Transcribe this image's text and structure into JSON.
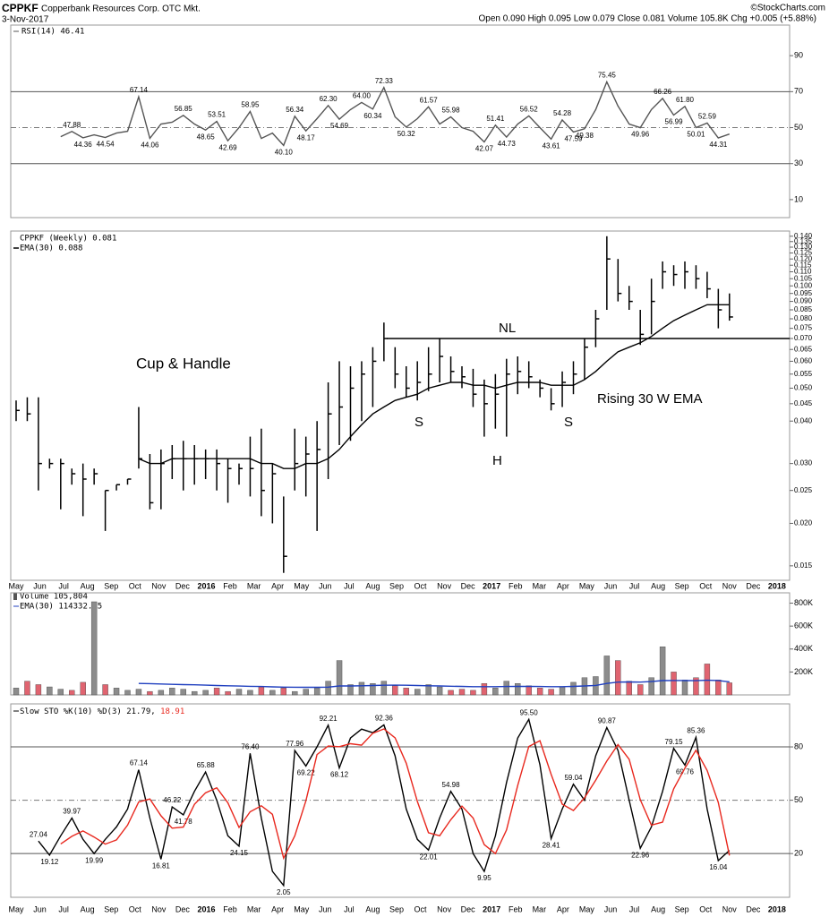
{
  "header": {
    "symbol": "CPPKF",
    "company": "Copperbank Resources Corp. OTC Mkt.",
    "date": "3-Nov-2017",
    "quote": "Open 0.090 High 0.095 Low 0.079 Close 0.081 Volume 105.8K Chg +0.005 (+5.88%)",
    "source": "©StockCharts.com"
  },
  "time_axis": [
    "May",
    "Jun",
    "Jul",
    "Aug",
    "Sep",
    "Oct",
    "Nov",
    "Dec",
    "2016",
    "Feb",
    "Mar",
    "Apr",
    "May",
    "Jun",
    "Jul",
    "Aug",
    "Sep",
    "Oct",
    "Nov",
    "Dec",
    "2017",
    "Feb",
    "Mar",
    "Apr",
    "May",
    "Jun",
    "Jul",
    "Aug",
    "Sep",
    "Oct",
    "Nov",
    "Dec",
    "2018"
  ],
  "chart_data": [
    {
      "type": "line",
      "title": "RSI(14) 46.41",
      "ylim": [
        0,
        107
      ],
      "yticks": [
        10,
        30,
        50,
        70,
        90
      ],
      "hlines": [
        {
          "value": 70,
          "style": "solid"
        },
        {
          "value": 50,
          "style": "dashed"
        },
        {
          "value": 30,
          "style": "solid"
        }
      ],
      "series": [
        {
          "name": "RSI(14)",
          "color": "#555555",
          "values": [
            null,
            null,
            null,
            null,
            45,
            47.88,
            44.36,
            46,
            44.54,
            47,
            48,
            67.14,
            44.06,
            52,
            53,
            56.85,
            52,
            48.65,
            53.51,
            42.69,
            50,
            58.95,
            44,
            47,
            40.1,
            56.34,
            48.17,
            55,
            62.3,
            54.69,
            60,
            64,
            60.34,
            72.33,
            56,
            50.32,
            55,
            61.57,
            52,
            55.98,
            50,
            48,
            42.07,
            51.41,
            44.73,
            52,
            56.52,
            50,
            43.61,
            54.28,
            47.59,
            49.38,
            60,
            75.45,
            62,
            52,
            49.96,
            60,
            66.26,
            56.99,
            61.8,
            50.01,
            52.59,
            44.31,
            46.41
          ],
          "value_labels": [
            null,
            null,
            null,
            null,
            null,
            "47.88",
            "44.36",
            null,
            "44.54",
            null,
            null,
            "67.14",
            "44.06",
            null,
            null,
            "56.85",
            null,
            "48.65",
            "53.51",
            "42.69",
            null,
            "58.95",
            null,
            null,
            "40.10",
            "56.34",
            "48.17",
            null,
            "62.30",
            "54.69",
            null,
            "64.00",
            "60.34",
            "72.33",
            null,
            "50.32",
            null,
            "61.57",
            null,
            "55.98",
            null,
            null,
            "42.07",
            "51.41",
            "44.73",
            null,
            "56.52",
            null,
            "43.61",
            "54.28",
            "47.59",
            "49.38",
            null,
            "75.45",
            null,
            null,
            "49.96",
            null,
            "66.26",
            "56.99",
            "61.80",
            "50.01",
            "52.59",
            "44.31",
            null
          ]
        }
      ]
    },
    {
      "type": "hlc",
      "log": true,
      "ylim": [
        0.0136,
        0.145
      ],
      "yticks": [
        {
          "value": 0.14,
          "label": "0.140"
        },
        0.135,
        {
          "value": 0.13,
          "label": "0.130"
        },
        0.125,
        {
          "value": 0.12,
          "label": "0.120"
        },
        0.115,
        {
          "value": 0.11,
          "label": "0.110"
        },
        0.105,
        {
          "value": 0.1,
          "label": "0.100"
        },
        0.095,
        {
          "value": 0.09,
          "label": "0.090"
        },
        0.085,
        {
          "value": 0.08,
          "label": "0.080"
        },
        0.075,
        {
          "value": 0.07,
          "label": "0.070"
        },
        0.065,
        {
          "value": 0.06,
          "label": "0.060"
        },
        0.055,
        {
          "value": 0.05,
          "label": "0.050"
        },
        0.045,
        {
          "value": 0.04,
          "label": "0.040"
        },
        {
          "value": 0.03,
          "label": "0.030"
        },
        0.025,
        {
          "value": 0.02,
          "label": "0.020"
        },
        0.015
      ],
      "neckline": {
        "label": "NL",
        "value": 0.07
      },
      "annotations": [
        "Cup & Handle",
        "S",
        "H",
        "S",
        "Rising 30 W EMA"
      ],
      "series": [
        {
          "name": "CPPKF (Weekly) 0.081",
          "color": "#000000",
          "high": [
            0.046,
            0.047,
            0.047,
            0.031,
            0.031,
            0.029,
            0.03,
            0.029,
            0.025,
            0.026,
            0.027,
            0.044,
            0.032,
            0.033,
            0.034,
            0.035,
            0.034,
            0.033,
            0.033,
            0.031,
            0.03,
            0.036,
            0.038,
            0.03,
            0.024,
            0.038,
            0.036,
            0.04,
            0.052,
            0.06,
            0.058,
            0.06,
            0.066,
            0.078,
            0.066,
            0.058,
            0.06,
            0.066,
            0.07,
            0.062,
            0.058,
            0.057,
            0.053,
            0.055,
            0.061,
            0.062,
            0.06,
            0.053,
            0.05,
            0.056,
            0.06,
            0.07,
            0.085,
            0.14,
            0.12,
            0.1,
            0.085,
            0.105,
            0.118,
            0.115,
            0.118,
            0.115,
            0.11,
            0.098,
            0.095
          ],
          "low": [
            0.04,
            0.04,
            0.025,
            0.029,
            0.022,
            0.026,
            0.021,
            0.026,
            0.019,
            0.025,
            0.026,
            0.029,
            0.022,
            0.022,
            0.027,
            0.025,
            0.026,
            0.027,
            0.025,
            0.023,
            0.026,
            0.024,
            0.021,
            0.02,
            0.0143,
            0.025,
            0.024,
            0.019,
            0.027,
            0.034,
            0.035,
            0.04,
            0.044,
            0.06,
            0.05,
            0.047,
            0.046,
            0.049,
            0.052,
            0.052,
            0.05,
            0.044,
            0.036,
            0.038,
            0.036,
            0.048,
            0.05,
            0.047,
            0.043,
            0.044,
            0.048,
            0.053,
            0.066,
            0.085,
            0.09,
            0.085,
            0.067,
            0.072,
            0.098,
            0.1,
            0.098,
            0.098,
            0.092,
            0.075,
            0.079
          ],
          "close": [
            0.043,
            0.042,
            0.03,
            0.03,
            0.03,
            0.028,
            0.027,
            0.028,
            0.025,
            0.026,
            0.027,
            0.031,
            0.023,
            0.03,
            0.031,
            0.031,
            0.031,
            0.031,
            0.03,
            0.029,
            0.029,
            0.029,
            0.025,
            0.028,
            0.016,
            0.03,
            0.032,
            0.033,
            0.042,
            0.044,
            0.05,
            0.055,
            0.06,
            0.07,
            0.055,
            0.05,
            0.052,
            0.055,
            0.062,
            0.056,
            0.054,
            0.048,
            0.045,
            0.048,
            0.055,
            0.056,
            0.054,
            0.05,
            0.045,
            0.052,
            0.055,
            0.066,
            0.08,
            0.12,
            0.095,
            0.09,
            0.072,
            0.09,
            0.11,
            0.108,
            0.11,
            0.105,
            0.098,
            0.085,
            0.081
          ]
        },
        {
          "name": "EMA(30) 0.088",
          "type": "line",
          "color": "#000000",
          "values": [
            null,
            null,
            null,
            null,
            null,
            null,
            null,
            null,
            null,
            null,
            null,
            0.031,
            0.03,
            0.03,
            0.031,
            0.031,
            0.031,
            0.031,
            0.031,
            0.031,
            0.031,
            0.031,
            0.03,
            0.03,
            0.029,
            0.029,
            0.03,
            0.03,
            0.031,
            0.033,
            0.036,
            0.039,
            0.042,
            0.044,
            0.046,
            0.047,
            0.048,
            0.05,
            0.051,
            0.052,
            0.052,
            0.051,
            0.051,
            0.05,
            0.051,
            0.052,
            0.052,
            0.052,
            0.051,
            0.051,
            0.051,
            0.053,
            0.056,
            0.06,
            0.064,
            0.066,
            0.068,
            0.071,
            0.075,
            0.079,
            0.082,
            0.085,
            0.088,
            0.088,
            0.088
          ]
        }
      ]
    },
    {
      "type": "bar",
      "ylim": [
        0,
        890000
      ],
      "yticks": [
        {
          "value": 200000,
          "label": "200K"
        },
        {
          "value": 400000,
          "label": "400K"
        },
        {
          "value": 600000,
          "label": "600K"
        },
        {
          "value": 800000,
          "label": "800K"
        }
      ],
      "series": [
        {
          "name": "Volume 105,804",
          "up_color": "#8c8c8c",
          "down_color": "#e06470",
          "values": [
            60000,
            120000,
            90000,
            70000,
            50000,
            40000,
            110000,
            812000,
            90000,
            60000,
            40000,
            50000,
            30000,
            40000,
            60000,
            50000,
            30000,
            40000,
            60000,
            30000,
            50000,
            40000,
            70000,
            40000,
            60000,
            30000,
            50000,
            60000,
            120000,
            300000,
            90000,
            110000,
            100000,
            120000,
            80000,
            60000,
            50000,
            90000,
            70000,
            40000,
            50000,
            40000,
            100000,
            60000,
            120000,
            100000,
            80000,
            60000,
            50000,
            70000,
            110000,
            150000,
            160000,
            340000,
            300000,
            120000,
            90000,
            150000,
            420000,
            200000,
            130000,
            150000,
            270000,
            130000,
            105804
          ]
        },
        {
          "name": "EMA(30) 114332.45",
          "type": "line",
          "color": "#1f3fbf",
          "values": [
            null,
            null,
            null,
            null,
            null,
            null,
            null,
            null,
            null,
            null,
            null,
            100000,
            98000,
            95000,
            92000,
            90000,
            88000,
            85000,
            82000,
            80000,
            77000,
            75000,
            73000,
            70000,
            68000,
            67000,
            66000,
            66000,
            68000,
            78000,
            78000,
            80000,
            82000,
            84000,
            85000,
            84000,
            82000,
            80000,
            78000,
            76000,
            74000,
            72000,
            72000,
            72000,
            73000,
            74000,
            74000,
            73000,
            72000,
            72000,
            74000,
            78000,
            83000,
            100000,
            112000,
            113000,
            112000,
            116000,
            125000,
            126000,
            125000,
            124000,
            128000,
            126000,
            114332.45
          ]
        }
      ]
    },
    {
      "type": "line",
      "ylim": [
        -4.6,
        104.2
      ],
      "yticks": [
        20,
        50,
        80
      ],
      "hlines": [
        {
          "value": 80,
          "style": "solid"
        },
        {
          "value": 50,
          "style": "dashed"
        },
        {
          "value": 20,
          "style": "solid"
        }
      ],
      "series": [
        {
          "name": "Slow STO %K(10) %D(3) 21.79,",
          "color": "#000000",
          "values": [
            null,
            null,
            27.04,
            19.12,
            30,
            39.97,
            28,
            19.99,
            28,
            35,
            45,
            67.14,
            40,
            16.81,
            46.22,
            41.78,
            55,
            65.88,
            50,
            30,
            24.15,
            76.4,
            40,
            10,
            2.05,
            77.96,
            69.22,
            80,
            92.21,
            68.12,
            85,
            90,
            88,
            92.36,
            75,
            45,
            28,
            22.01,
            40,
            54.98,
            45,
            20,
            9.95,
            30,
            60,
            85,
            95.5,
            70,
            28.41,
            45,
            59.04,
            50,
            75,
            90.87,
            78,
            50,
            22.96,
            35,
            55,
            79.15,
            69.76,
            85.36,
            45,
            16.04,
            21.79
          ],
          "value_labels": [
            null,
            null,
            "27.04",
            "19.12",
            null,
            "39.97",
            null,
            "19.99",
            null,
            null,
            null,
            "67.14",
            null,
            "16.81",
            "46.22",
            "41.78",
            null,
            "65.88",
            null,
            null,
            "24.15",
            "76.40",
            null,
            null,
            "2.05",
            "77.96",
            "69.22",
            null,
            "92.21",
            "68.12",
            null,
            null,
            null,
            "92.36",
            null,
            null,
            null,
            "22.01",
            null,
            "54.98",
            null,
            null,
            "9.95",
            null,
            null,
            null,
            "95.50",
            null,
            "28.41",
            null,
            "59.04",
            null,
            null,
            "90.87",
            null,
            null,
            "22.96",
            null,
            null,
            "79.15",
            "69.76",
            "85.36",
            null,
            "16.04",
            null
          ]
        },
        {
          "name": "18.91",
          "color": "#e8281e",
          "values": [
            null,
            null,
            null,
            null,
            25.4,
            29.7,
            32.7,
            29.3,
            25.3,
            27.7,
            36,
            49,
            50.7,
            41.3,
            34.3,
            34.9,
            47.7,
            54.2,
            57,
            48.6,
            34.7,
            43.5,
            46.9,
            42.1,
            17.4,
            30,
            49.7,
            75.7,
            80.5,
            80.1,
            81.8,
            81,
            87.7,
            90.1,
            85.1,
            70.8,
            49.3,
            31.7,
            30,
            39,
            46.7,
            40,
            25,
            20,
            33.3,
            58.3,
            80.2,
            83.5,
            64.6,
            47.8,
            44.2,
            51.3,
            61.3,
            72,
            81.3,
            73,
            50.3,
            36,
            37.7,
            56.4,
            68,
            78.1,
            66.7,
            48.8,
            18.91
          ]
        }
      ]
    }
  ]
}
